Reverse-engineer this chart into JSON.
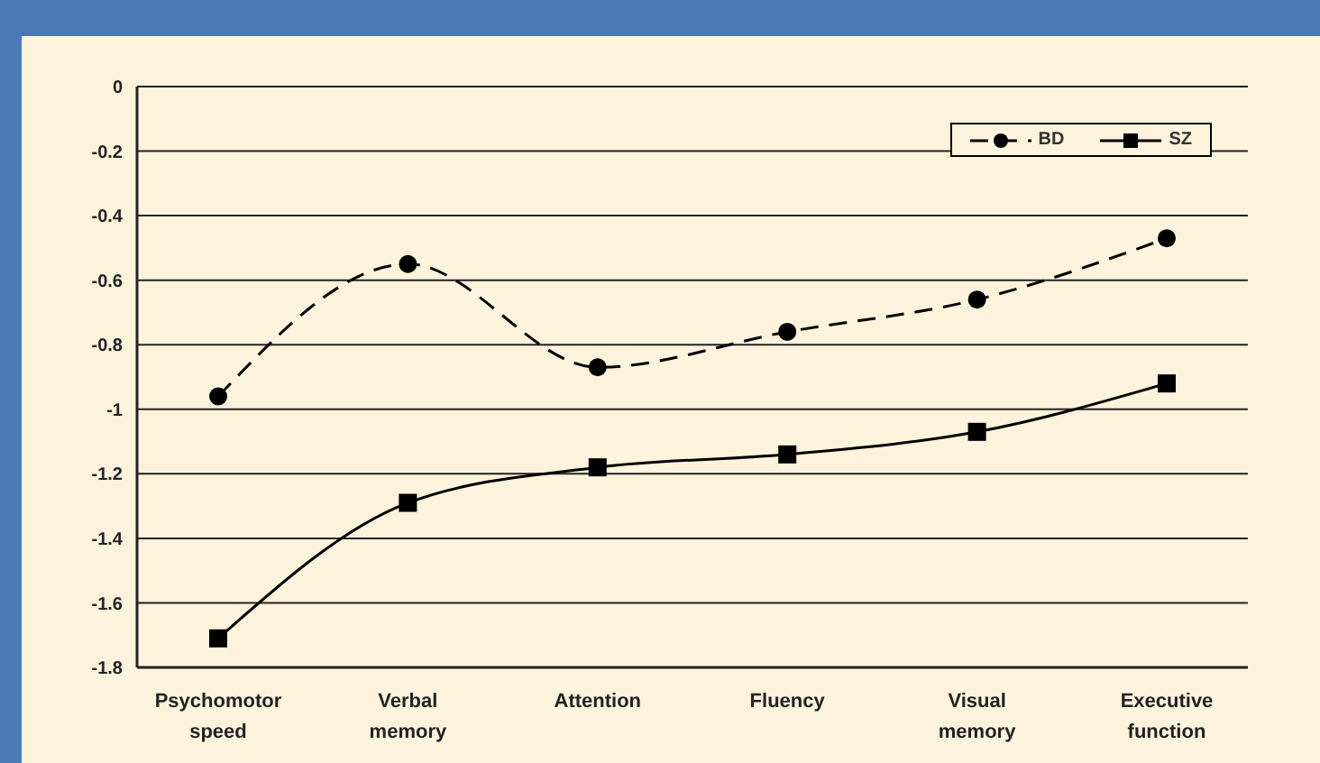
{
  "chart_data": {
    "type": "line",
    "categories": [
      "Psychomotor speed",
      "Verbal memory",
      "Attention",
      "Fluency",
      "Visual memory",
      "Executive function"
    ],
    "series": [
      {
        "name": "BD",
        "color": "#000000",
        "marker": "circle",
        "line_style": "dashed",
        "values": [
          -0.96,
          -0.55,
          -0.87,
          -0.76,
          -0.66,
          -0.47
        ]
      },
      {
        "name": "SZ",
        "color": "#000000",
        "marker": "square",
        "line_style": "solid",
        "values": [
          -1.71,
          -1.29,
          -1.18,
          -1.14,
          -1.07,
          -0.92
        ]
      }
    ],
    "ylim": [
      -1.8,
      0
    ],
    "yticks": [
      -1.8,
      -1.6,
      -1.4,
      -1.2,
      -1,
      -0.8,
      -0.6,
      -0.4,
      -0.2,
      0
    ],
    "grid": "y",
    "legend": "top right"
  }
}
